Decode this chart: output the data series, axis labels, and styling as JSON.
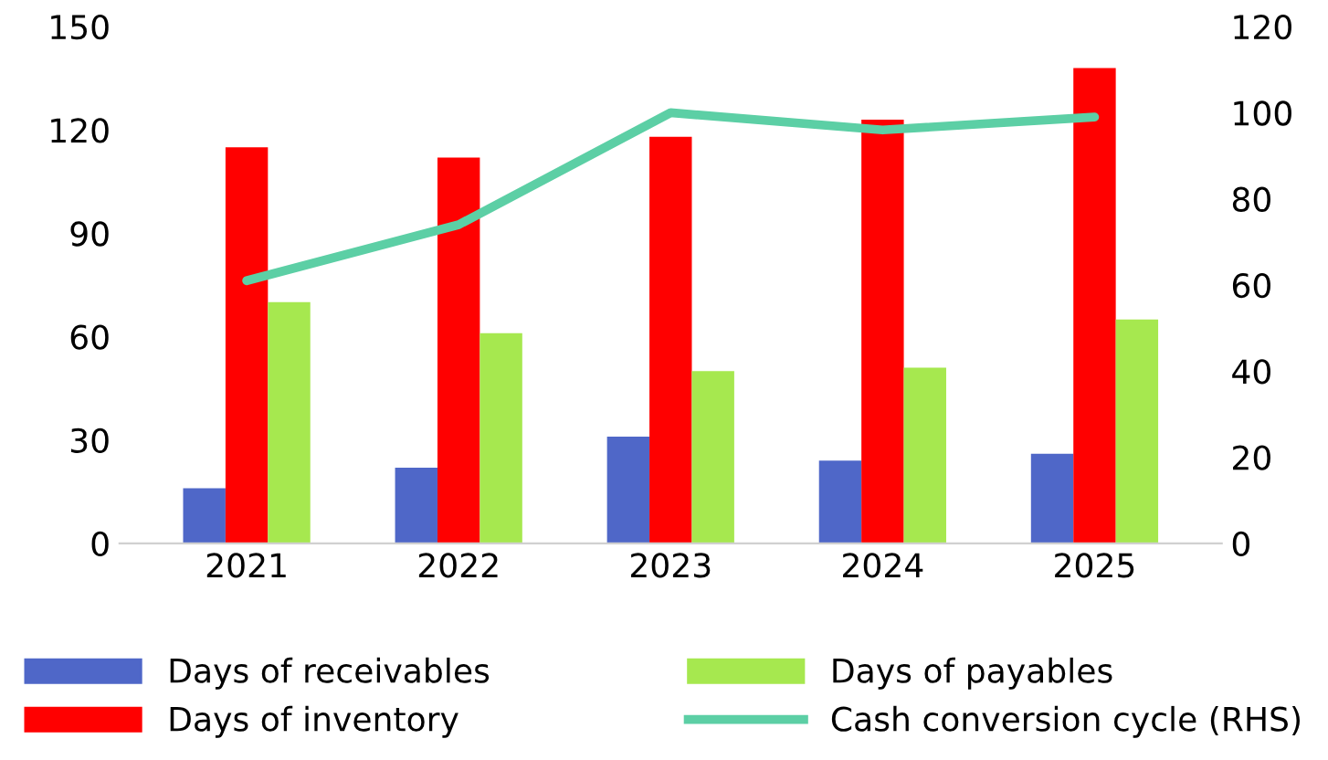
{
  "chart_data": {
    "type": "bar",
    "categories": [
      "2021",
      "2022",
      "2023",
      "2024",
      "2025"
    ],
    "series": [
      {
        "name": "Days of receivables",
        "color": "#4f67c8",
        "values": [
          16,
          22,
          31,
          24,
          26
        ]
      },
      {
        "name": "Days of inventory",
        "color": "#ff0000",
        "values": [
          115,
          112,
          118,
          123,
          138
        ]
      },
      {
        "name": "Days of payables",
        "color": "#a6e84f",
        "values": [
          70,
          61,
          50,
          51,
          65
        ]
      },
      {
        "name": "Cash conversion cycle (RHS)",
        "type": "line",
        "axis": "y2",
        "color": "#5ccfa5",
        "values": [
          61,
          74,
          100,
          96,
          99
        ]
      }
    ],
    "ylim": [
      0,
      150
    ],
    "yticks": [
      0,
      30,
      60,
      90,
      120,
      150
    ],
    "y2lim": [
      0,
      120
    ],
    "y2ticks": [
      0,
      20,
      40,
      60,
      80,
      100,
      120
    ],
    "grid": false,
    "legend": "bottom",
    "marker": "none",
    "line_style": "solid"
  }
}
